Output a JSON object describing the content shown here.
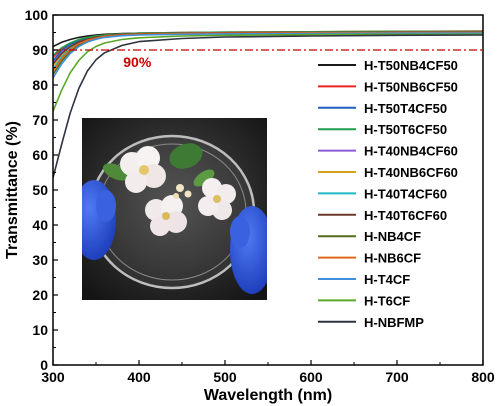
{
  "chart_data": {
    "type": "line",
    "xlabel": "Wavelength (nm)",
    "ylabel": "Transmittance (%)",
    "xlim": [
      300,
      800
    ],
    "ylim": [
      0,
      100
    ],
    "xticks": [
      300,
      400,
      500,
      600,
      700,
      800
    ],
    "yticks": [
      0,
      10,
      20,
      30,
      40,
      50,
      60,
      70,
      80,
      90,
      100
    ],
    "reference_line": {
      "y": 90,
      "label": "90%",
      "color": "#cc0000"
    },
    "legend_position": "right",
    "grid": false,
    "inset_image": "photo-of-white-flowers-in-transparent-petri-dish-held-by-blue-gloves",
    "x": [
      300,
      310,
      320,
      330,
      340,
      350,
      360,
      380,
      400,
      450,
      500,
      600,
      700,
      800
    ],
    "series": [
      {
        "name": "H-T50NB4CF50",
        "color": "#1a1a1a",
        "values": [
          91.0,
          92.2,
          93.0,
          93.6,
          94.0,
          94.3,
          94.5,
          94.7,
          94.8,
          94.9,
          95.0,
          95.1,
          95.2,
          95.2
        ]
      },
      {
        "name": "H-T50NB6CF50",
        "color": "#e8251f",
        "values": [
          88.0,
          90.2,
          91.8,
          92.8,
          93.5,
          94.0,
          94.3,
          94.6,
          94.8,
          95.0,
          95.1,
          95.2,
          95.3,
          95.4
        ]
      },
      {
        "name": "H-T50T4CF50",
        "color": "#1f5fbf",
        "values": [
          87.0,
          89.8,
          91.6,
          92.7,
          93.4,
          93.9,
          94.2,
          94.5,
          94.7,
          94.9,
          95.0,
          95.1,
          95.1,
          95.2
        ]
      },
      {
        "name": "H-T50T6CF50",
        "color": "#1f9e4a",
        "values": [
          88.5,
          90.6,
          92.0,
          93.0,
          93.6,
          94.0,
          94.3,
          94.6,
          94.8,
          95.0,
          95.1,
          95.2,
          95.3,
          95.3
        ]
      },
      {
        "name": "H-T40NB4CF60",
        "color": "#8b5bd6",
        "values": [
          86.5,
          89.2,
          91.0,
          92.3,
          93.1,
          93.6,
          94.0,
          94.4,
          94.6,
          94.8,
          94.9,
          95.0,
          95.1,
          95.1
        ]
      },
      {
        "name": "H-T40NB6CF60",
        "color": "#d6a21a",
        "values": [
          85.5,
          88.6,
          90.8,
          92.1,
          93.0,
          93.6,
          94.0,
          94.4,
          94.6,
          94.8,
          94.9,
          95.0,
          95.1,
          95.1
        ]
      },
      {
        "name": "H-T40T4CF60",
        "color": "#1cb8c4",
        "values": [
          84.5,
          88.0,
          90.4,
          91.9,
          92.9,
          93.5,
          93.9,
          94.3,
          94.5,
          94.7,
          94.8,
          94.9,
          95.0,
          95.0
        ]
      },
      {
        "name": "H-T40T6CF60",
        "color": "#6b3a2a",
        "values": [
          86.0,
          89.0,
          91.0,
          92.3,
          93.1,
          93.6,
          94.0,
          94.4,
          94.6,
          94.8,
          94.9,
          95.0,
          95.1,
          95.1
        ]
      },
      {
        "name": "H-NB4CF",
        "color": "#556b1a",
        "values": [
          83.0,
          86.8,
          89.6,
          91.4,
          92.6,
          93.3,
          93.8,
          94.2,
          94.4,
          94.6,
          94.7,
          94.8,
          94.9,
          94.9
        ]
      },
      {
        "name": "H-NB6CF",
        "color": "#e0661a",
        "values": [
          84.0,
          87.5,
          90.1,
          91.8,
          92.8,
          93.4,
          93.9,
          94.3,
          94.5,
          94.7,
          94.8,
          94.9,
          95.0,
          95.0
        ]
      },
      {
        "name": "H-T4CF",
        "color": "#3f8fdc",
        "values": [
          82.0,
          86.0,
          89.0,
          91.0,
          92.3,
          93.1,
          93.6,
          94.1,
          94.3,
          94.5,
          94.6,
          94.7,
          94.8,
          94.8
        ]
      },
      {
        "name": "H-T6CF",
        "color": "#5aa829",
        "values": [
          72.5,
          78.5,
          83.5,
          87.0,
          89.5,
          91.0,
          92.0,
          93.0,
          93.5,
          94.0,
          94.2,
          94.4,
          94.5,
          94.5
        ]
      },
      {
        "name": "H-NBFMP",
        "color": "#2e3340",
        "values": [
          53.5,
          63.0,
          72.0,
          79.0,
          84.0,
          87.2,
          89.2,
          91.3,
          92.4,
          93.3,
          93.7,
          94.0,
          94.2,
          94.3
        ]
      }
    ]
  }
}
